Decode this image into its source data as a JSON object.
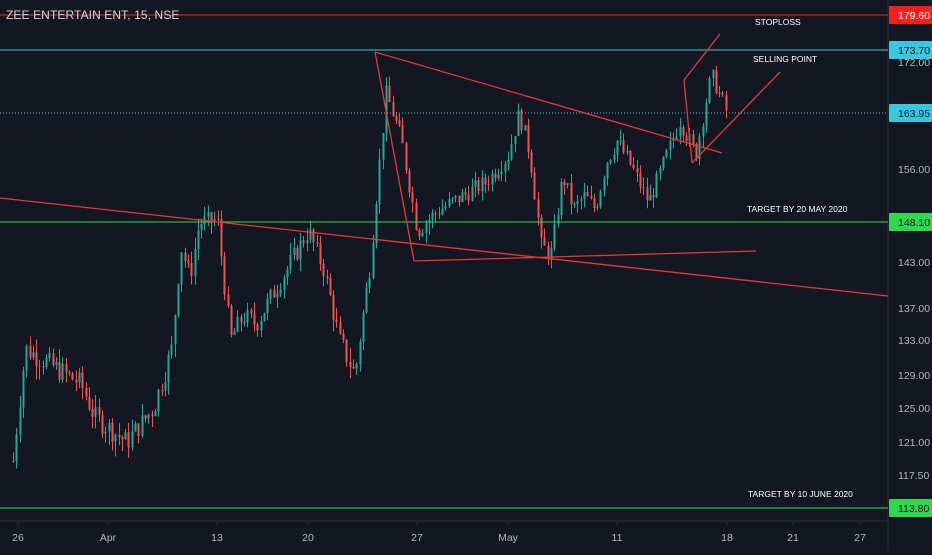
{
  "header": {
    "symbol_title": "ZEE ENTERTAIN ENT, 15, NSE"
  },
  "colors": {
    "background": "#131722",
    "axis_text": "#b2b5be",
    "up_candle": "#26a69a",
    "down_candle": "#ef5350",
    "trendline": "#e53935",
    "stoploss": "#ff1c1c",
    "selling_point": "#36c8e0",
    "target": "#2ed94d"
  },
  "chart_data": {
    "type": "candlestick",
    "title": "ZEE ENTERTAIN ENT, 15, NSE",
    "ylim": [
      113.0,
      182.5
    ],
    "y_axis_ticks": [
      "172.00",
      "156.00",
      "148.10",
      "143.00",
      "137.00",
      "133.00",
      "129.00",
      "125.00",
      "121.00",
      "117.50",
      "113.80"
    ],
    "x_axis_ticks": [
      "26",
      "Apr",
      "13",
      "20",
      "27",
      "May",
      "11",
      "18",
      "21",
      "27"
    ],
    "price_labels": [
      {
        "name": "stoploss",
        "value": "179.60"
      },
      {
        "name": "selling-point",
        "value": "173.70"
      },
      {
        "name": "last-price",
        "value": "163.95"
      },
      {
        "name": "target-1",
        "value": "148.10"
      },
      {
        "name": "target-2",
        "value": "113.80"
      }
    ],
    "horizontal_lines": [
      {
        "name": "stoploss-line",
        "price": 179.6,
        "color": "#ff1c1c",
        "style": "solid"
      },
      {
        "name": "selling-point-line",
        "price": 173.7,
        "color": "#36c8e0",
        "style": "solid"
      },
      {
        "name": "last-price-line",
        "price": 163.95,
        "color": "#36c8e0",
        "style": "dotted"
      },
      {
        "name": "target-may-line",
        "price": 148.1,
        "color": "#2ed94d",
        "style": "solid"
      },
      {
        "name": "target-june-line",
        "price": 113.8,
        "color": "#2ed94d",
        "style": "solid"
      }
    ],
    "annotations": [
      {
        "name": "stoploss-label",
        "text": "STOPLOSS"
      },
      {
        "name": "selling-point-label",
        "text": "SELLING POINT"
      },
      {
        "name": "target-may-label",
        "text": "TARGET BY 20 MAY 2020"
      },
      {
        "name": "target-june-label",
        "text": "TARGET BY 10 JUNE 2020"
      }
    ],
    "price_path": [
      {
        "x": "Mar 24",
        "y": 119
      },
      {
        "x": "Mar 26",
        "y": 132
      },
      {
        "x": "Mar 27",
        "y": 131
      },
      {
        "x": "Mar 30",
        "y": 128
      },
      {
        "x": "Mar 31",
        "y": 124
      },
      {
        "x": "Apr 3",
        "y": 121
      },
      {
        "x": "Apr 6",
        "y": 125
      },
      {
        "x": "Apr 8",
        "y": 132
      },
      {
        "x": "Apr 9",
        "y": 145
      },
      {
        "x": "Apr 10",
        "y": 141
      },
      {
        "x": "Apr 11",
        "y": 148
      },
      {
        "x": "Apr 13",
        "y": 148.5
      },
      {
        "x": "Apr 14",
        "y": 133
      },
      {
        "x": "Apr 15",
        "y": 136
      },
      {
        "x": "Apr 16",
        "y": 135
      },
      {
        "x": "Apr 17",
        "y": 138
      },
      {
        "x": "Apr 18",
        "y": 141
      },
      {
        "x": "Apr 20",
        "y": 147
      },
      {
        "x": "Apr 21",
        "y": 142
      },
      {
        "x": "Apr 22",
        "y": 133
      },
      {
        "x": "Apr 23",
        "y": 129
      },
      {
        "x": "Apr 24",
        "y": 143
      },
      {
        "x": "Apr 25",
        "y": 167
      },
      {
        "x": "Apr 26",
        "y": 160
      },
      {
        "x": "Apr 27",
        "y": 147
      },
      {
        "x": "Apr 28",
        "y": 150
      },
      {
        "x": "Apr 29",
        "y": 152
      },
      {
        "x": "Apr 30",
        "y": 154
      },
      {
        "x": "May 1",
        "y": 158
      },
      {
        "x": "May 2",
        "y": 164
      },
      {
        "x": "May 3",
        "y": 158
      },
      {
        "x": "May 4",
        "y": 145
      },
      {
        "x": "May 5",
        "y": 144
      },
      {
        "x": "May 6",
        "y": 155
      },
      {
        "x": "May 7",
        "y": 150
      },
      {
        "x": "May 8",
        "y": 152
      },
      {
        "x": "May 9",
        "y": 150
      },
      {
        "x": "May 10",
        "y": 157
      },
      {
        "x": "May 11",
        "y": 160
      },
      {
        "x": "May 12",
        "y": 156
      },
      {
        "x": "May 13",
        "y": 151
      },
      {
        "x": "May 14",
        "y": 157
      },
      {
        "x": "May 15",
        "y": 163
      },
      {
        "x": "May 16",
        "y": 158
      },
      {
        "x": "May 17",
        "y": 170
      },
      {
        "x": "May 18",
        "y": 163.95
      }
    ]
  }
}
